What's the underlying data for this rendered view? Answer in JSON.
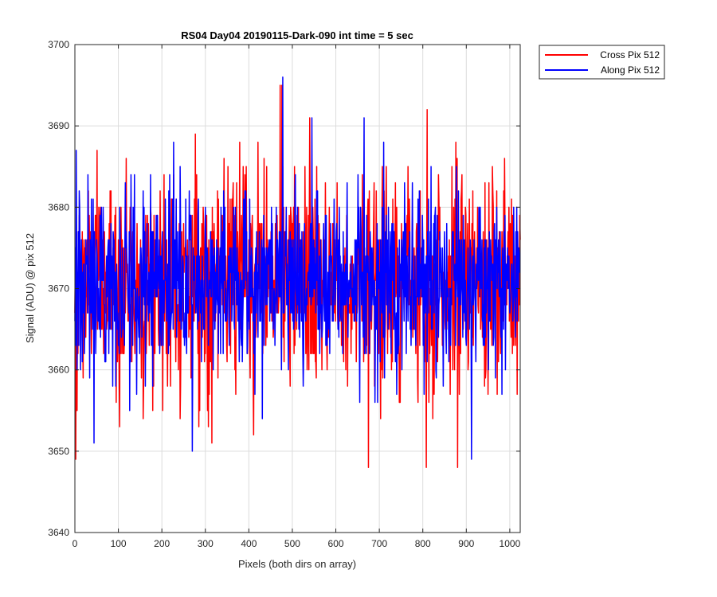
{
  "chart_data": {
    "type": "line",
    "title": "RS04 Day04 20190115-Dark-090 int time = 5 sec",
    "xlabel": "Pixels (both dirs on array)",
    "ylabel": "Signal (ADU) @ pix 512",
    "xlim": [
      0,
      1024
    ],
    "ylim": [
      3640,
      3700
    ],
    "xticks": [
      0,
      100,
      200,
      300,
      400,
      500,
      600,
      700,
      800,
      900,
      1000
    ],
    "yticks": [
      3640,
      3650,
      3660,
      3670,
      3680,
      3690,
      3700
    ],
    "grid": true,
    "legend_position": "outside top-right",
    "series": [
      {
        "name": "Cross Pix 512",
        "color": "#ff0000",
        "x_step": 1,
        "mean": 3671,
        "stdev": 6.5,
        "min": 3648,
        "max": 3695,
        "peaks": [
          [
            2,
            3649
          ],
          [
            3,
            3665
          ],
          [
            472,
            3695
          ],
          [
            476,
            3695
          ],
          [
            478,
            3685
          ],
          [
            540,
            3691
          ],
          [
            810,
            3692
          ],
          [
            675,
            3648
          ],
          [
            808,
            3648
          ],
          [
            880,
            3648
          ],
          [
            5,
            3655
          ]
        ]
      },
      {
        "name": "Along Pix 512",
        "color": "#0000ff",
        "x_step": 1,
        "mean": 3671,
        "stdev": 5.5,
        "min": 3649,
        "max": 3696,
        "peaks": [
          [
            3,
            3687
          ],
          [
            5,
            3660
          ],
          [
            44,
            3651
          ],
          [
            270,
            3650
          ],
          [
            478,
            3696
          ],
          [
            545,
            3691
          ],
          [
            665,
            3691
          ],
          [
            912,
            3649
          ]
        ]
      }
    ]
  }
}
